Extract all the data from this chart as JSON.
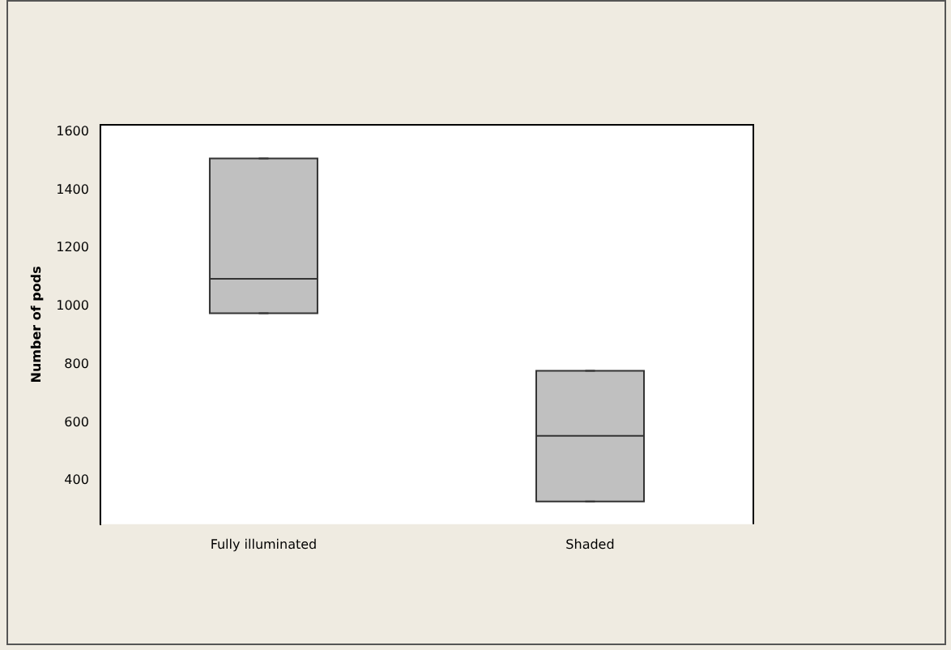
{
  "chart_data": {
    "type": "box",
    "ylabel": "Number of pods",
    "categories": [
      "Fully illuminated",
      "Shaded"
    ],
    "color": "#c0c0c0",
    "boxes": [
      {
        "low": 976,
        "q1": 976,
        "median": 1095,
        "q3": 1509,
        "high": 1509
      },
      {
        "low": 328,
        "q1": 328,
        "median": 554,
        "q3": 778,
        "high": 778
      }
    ],
    "ylim": [
      250,
      1625
    ],
    "yticks": [
      400,
      600,
      800,
      1000,
      1200,
      1400,
      1600
    ],
    "grid": false,
    "legend": false
  }
}
